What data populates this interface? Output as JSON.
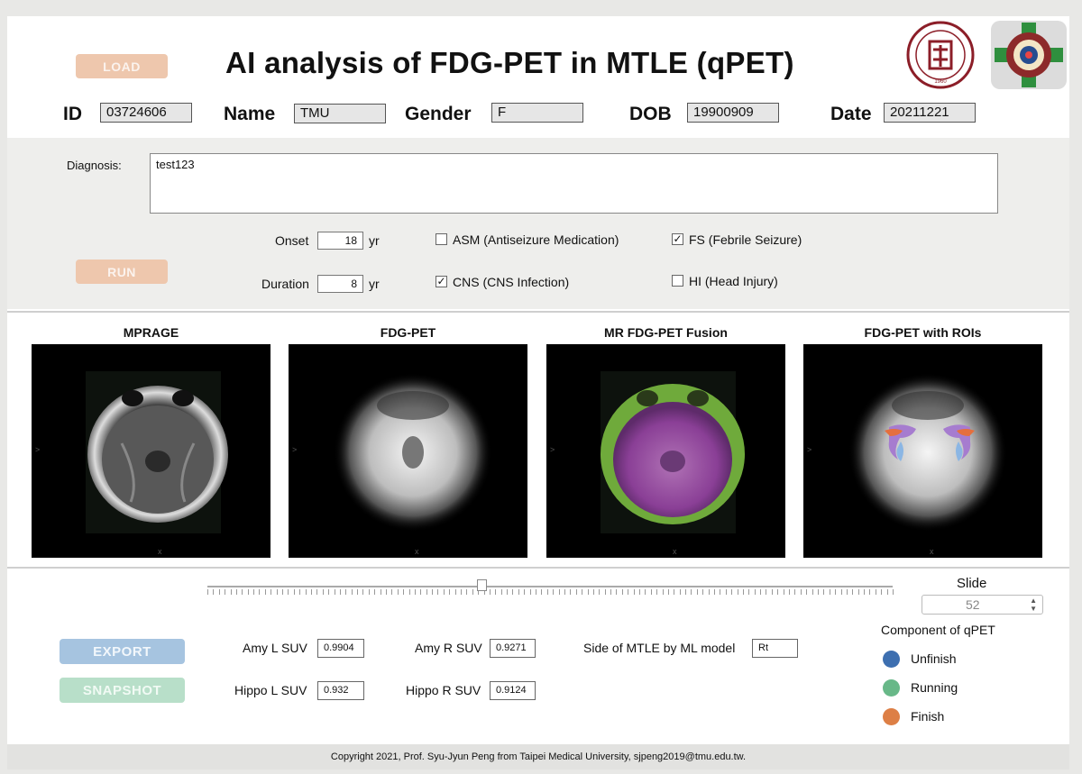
{
  "header": {
    "title": "AI analysis of FDG-PET in MTLE (qPET)",
    "load_label": "LOAD",
    "logo1_text": "TAIPEI MEDICAL UNIVERSITY 1960"
  },
  "patient": {
    "id_label": "ID",
    "id_value": "03724606",
    "name_label": "Name",
    "name_value": "TMU",
    "gender_label": "Gender",
    "gender_value": "F",
    "dob_label": "DOB",
    "dob_value": "19900909",
    "date_label": "Date",
    "date_value": "20211221"
  },
  "clinical": {
    "diagnosis_label": "Diagnosis:",
    "diagnosis_value": "test123",
    "onset_label": "Onset",
    "onset_value": "18",
    "onset_unit": "yr",
    "duration_label": "Duration",
    "duration_value": "8",
    "duration_unit": "yr",
    "asm_label": "ASM (Antiseizure Medication)",
    "asm_checked": false,
    "cns_label": "CNS (CNS Infection)",
    "cns_checked": true,
    "fs_label": "FS (Febrile Seizure)",
    "fs_checked": true,
    "hi_label": "HI (Head Injury)",
    "hi_checked": false,
    "run_label": "RUN",
    "check_glyph": "✓"
  },
  "images": {
    "mprage_title": "MPRAGE",
    "fdgpet_title": "FDG-PET",
    "fusion_title": "MR FDG-PET Fusion",
    "rois_title": "FDG-PET with ROIs",
    "axis_mark_x": "x",
    "axis_mark_y": ">"
  },
  "slice": {
    "label": "Slide",
    "value": "52",
    "slider_fraction": 0.4
  },
  "results": {
    "amy_l_label": "Amy L SUV",
    "amy_l_value": "0.9904",
    "amy_r_label": "Amy R SUV",
    "amy_r_value": "0.9271",
    "hippo_l_label": "Hippo L SUV",
    "hippo_l_value": "0.932",
    "hippo_r_label": "Hippo R SUV",
    "hippo_r_value": "0.9124",
    "side_label": "Side of MTLE by ML model",
    "side_value": "Rt",
    "export_label": "EXPORT",
    "snapshot_label": "SNAPSHOT"
  },
  "status": {
    "title": "Component of qPET",
    "unfinish_label": "Unfinish",
    "unfinish_color": "#3d6fb0",
    "running_label": "Running",
    "running_color": "#68b888",
    "finish_label": "Finish",
    "finish_color": "#dd7f45"
  },
  "footer": {
    "text": "Copyright 2021, Prof. Syu-Jyun Peng from Taipei Medical University, sjpeng2019@tmu.edu.tw."
  }
}
